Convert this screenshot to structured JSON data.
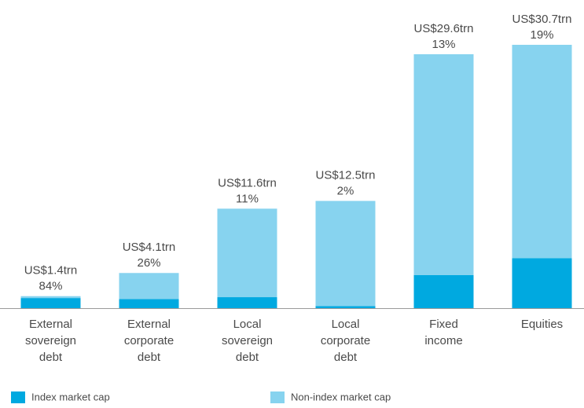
{
  "chart_data": {
    "type": "stacked_bar",
    "categories": [
      [
        "External",
        "sovereign",
        "debt"
      ],
      [
        "External",
        "corporate",
        "debt"
      ],
      [
        "Local",
        "sovereign",
        "debt"
      ],
      [
        "Local",
        "corporate",
        "debt"
      ],
      [
        "Fixed",
        "income"
      ],
      [
        "Equities"
      ]
    ],
    "series": [
      {
        "name": "Index market cap",
        "color": "#00a9e0",
        "values": [
          1.18,
          1.07,
          1.28,
          0.25,
          3.85,
          5.83
        ]
      },
      {
        "name": "Non-index market cap",
        "color": "#87d3ef",
        "values": [
          0.22,
          3.03,
          10.32,
          12.25,
          25.75,
          24.87
        ]
      }
    ],
    "data_labels": [
      [
        "US$1.4trn",
        "84%"
      ],
      [
        "US$4.1trn",
        "26%"
      ],
      [
        "US$11.6trn",
        "11%"
      ],
      [
        "US$12.5trn",
        "2%"
      ],
      [
        "US$29.6trn",
        "13%"
      ],
      [
        "US$30.7trn",
        "19%"
      ]
    ]
  }
}
